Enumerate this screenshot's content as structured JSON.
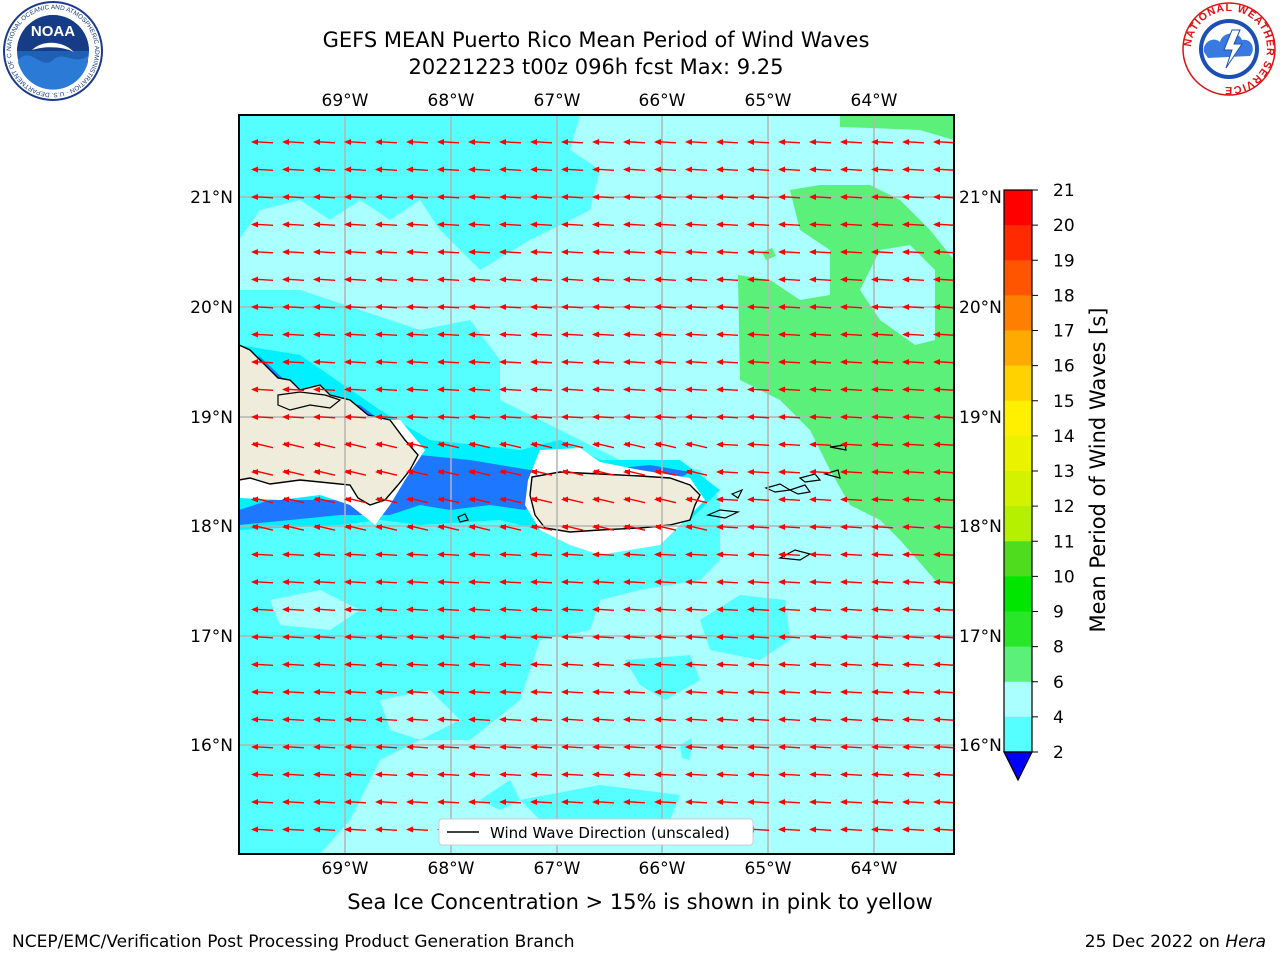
{
  "title": {
    "line1": "GEFS MEAN Puerto Rico Mean Period of Wind Waves",
    "line2": "20221223 t00z 096h fcst   Max: 9.25"
  },
  "map": {
    "lon_ticks": [
      "69°W",
      "68°W",
      "67°W",
      "66°W",
      "65°W",
      "64°W"
    ],
    "lat_ticks": [
      "21°N",
      "20°N",
      "19°N",
      "18°N",
      "17°N",
      "16°N"
    ],
    "legend_label": "Wind Wave Direction (unscaled)",
    "arrow_color": "#ff0000",
    "land_color": "#efecdc"
  },
  "colorbar": {
    "label": "Mean Period of Wind Waves [s]",
    "ticks": [
      "21",
      "20",
      "19",
      "18",
      "17",
      "16",
      "15",
      "14",
      "13",
      "12",
      "11",
      "10",
      "9",
      "8",
      "6",
      "4",
      "2"
    ],
    "colors": [
      "#ff0000",
      "#ff2a00",
      "#ff5500",
      "#ff8000",
      "#ffaa00",
      "#ffd200",
      "#fff000",
      "#eaf200",
      "#d2f200",
      "#b4f000",
      "#50dc1e",
      "#00e600",
      "#28e628",
      "#5af07a",
      "#aaffff",
      "#55ffff",
      "#00f0ff",
      "#1e78ff",
      "#0000ff"
    ]
  },
  "subtitle": "Sea Ice Concentration > 15% is shown in pink to yellow",
  "footer": {
    "credit": "NCEP/EMC/Verification Post Processing Product Generation Branch",
    "date": "25 Dec 2022 on",
    "machine": "Hera"
  },
  "logos": {
    "noaa": "NOAA",
    "noaa_ring": "NATIONAL OCEANIC AND ATMOSPHERIC ADMINISTRATION · U.S. DEPARTMENT OF COMMERCE",
    "nws_ring": "NATIONAL WEATHER SERVICE"
  }
}
